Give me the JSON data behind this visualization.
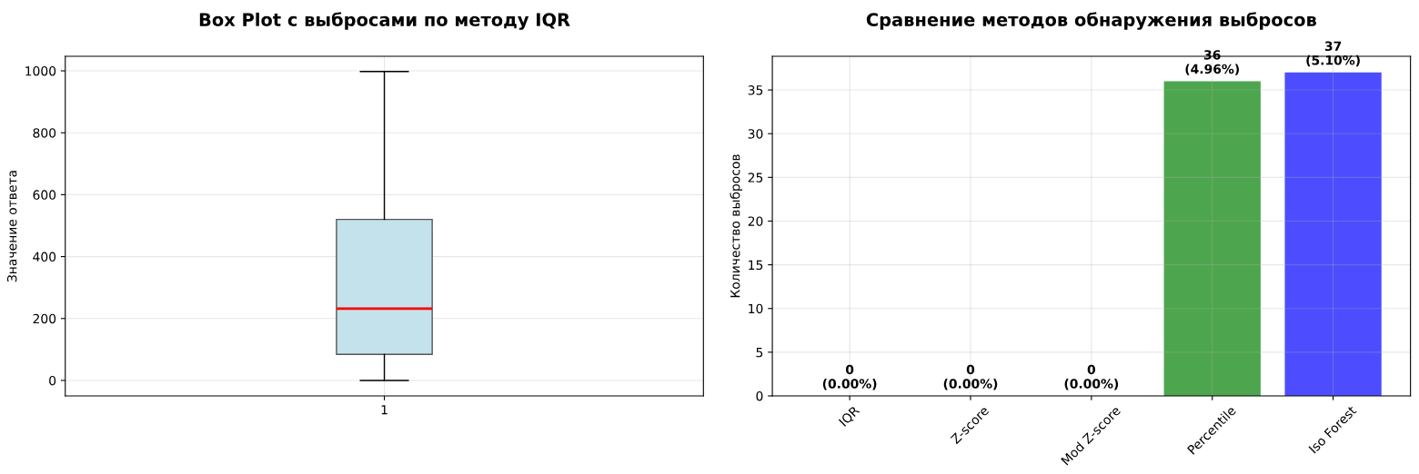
{
  "chart_data": [
    {
      "type": "box",
      "title": "Box Plot с выбросами по методу IQR",
      "ylabel": "Значение ответа",
      "categories": [
        "1"
      ],
      "boxes": [
        {
          "low": 0,
          "q1": 84,
          "median": 232,
          "q3": 520,
          "high": 998
        }
      ],
      "colors": [
        "#c4e2eb"
      ],
      "ylim": [
        -50,
        1047
      ],
      "yticks": [
        0,
        200,
        400,
        600,
        800,
        1000
      ],
      "grid": true
    },
    {
      "type": "bar",
      "title": "Сравнение методов обнаружения выбросов",
      "ylabel": "Количество выбросов",
      "categories": [
        "IQR",
        "Z-score",
        "Mod Z-score",
        "Percentile",
        "Iso Forest"
      ],
      "values": [
        0,
        0,
        0,
        36,
        37
      ],
      "colors": [
        null,
        null,
        null,
        "#4da64d",
        "#4d4dff"
      ],
      "value_labels": [
        "0\n(0.00%)",
        "0\n(0.00%)",
        "0\n(0.00%)",
        "36\n(4.96%)",
        "37\n(5.10%)"
      ],
      "ylim": [
        0,
        38.85
      ],
      "yticks": [
        0,
        5,
        10,
        15,
        20,
        25,
        30,
        35
      ],
      "grid": true
    }
  ]
}
